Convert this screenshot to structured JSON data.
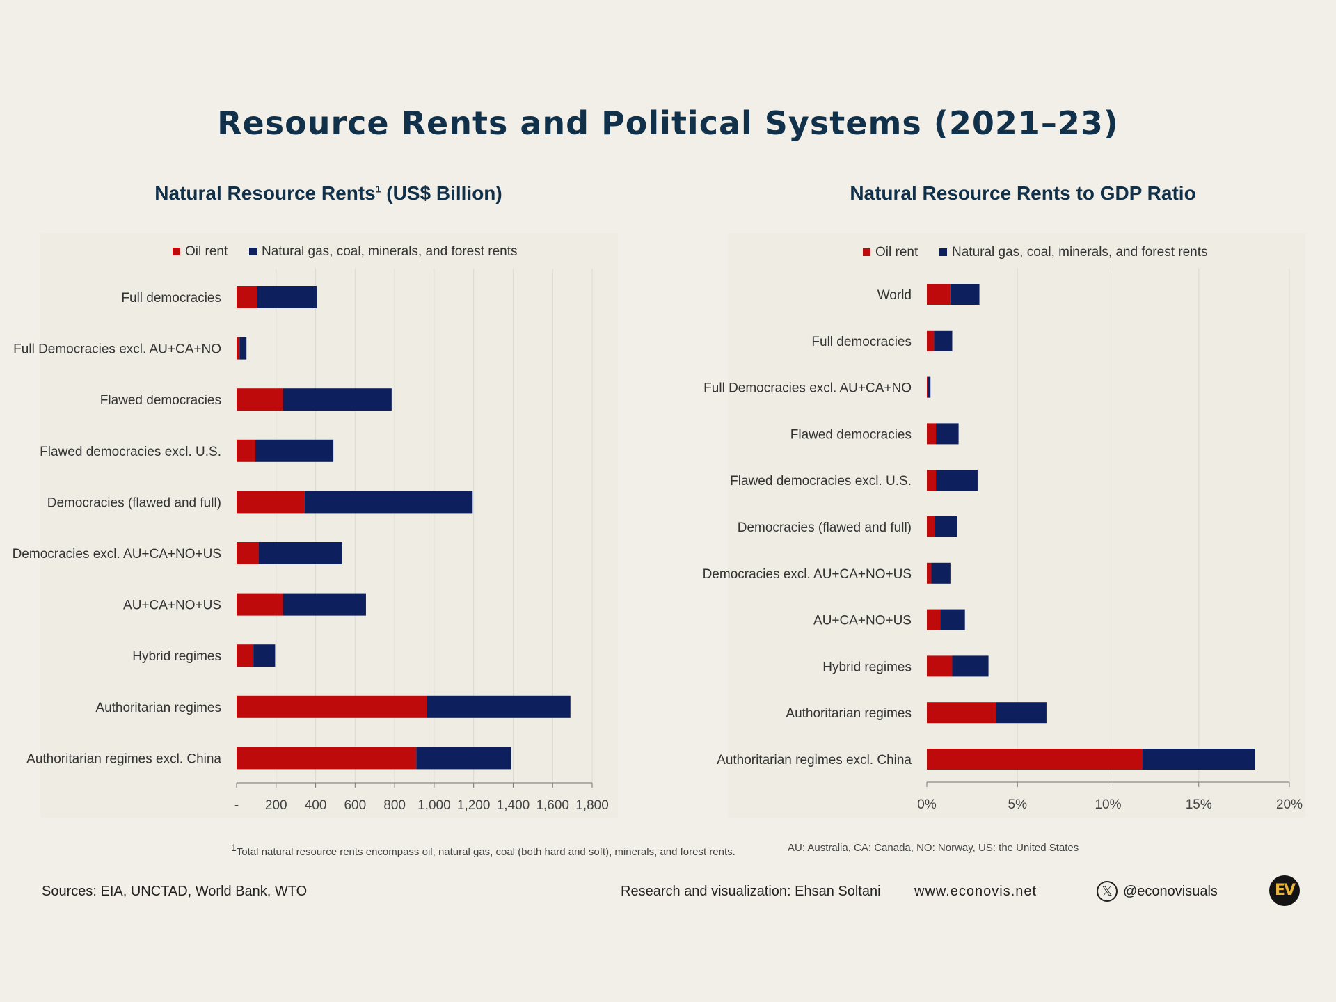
{
  "title": "Resource Rents and Political Systems (2021–23)",
  "colors": {
    "oil": "#be0a0a",
    "other": "#0d1f5c",
    "title": "#11304a",
    "grid": "#dcdad2"
  },
  "chart_data": [
    {
      "type": "bar",
      "orientation": "horizontal",
      "stacked": true,
      "title": "Natural Resource Rents",
      "title_sup": "1",
      "title_suffix": "(US$ Billion)",
      "categories": [
        "Full democracies",
        "Full Democracies excl. AU+CA+NO",
        "Flawed democracies",
        "Flawed democracies excl. U.S.",
        "Democracies (flawed and full)",
        "Democracies excl. AU+CA+NO+US",
        "AU+CA+NO+US",
        "Hybrid regimes",
        "Authoritarian regimes",
        "Authoritarian regimes excl. China"
      ],
      "series": [
        {
          "name": "Oil rent",
          "values": [
            105,
            15,
            235,
            95,
            345,
            110,
            235,
            85,
            965,
            910
          ]
        },
        {
          "name": "Natural gas, coal, minerals, and forest rents",
          "values": [
            300,
            35,
            550,
            395,
            850,
            425,
            420,
            110,
            725,
            480
          ]
        }
      ],
      "xlim": [
        0,
        1800
      ],
      "ticks": [
        0,
        200,
        400,
        600,
        800,
        1000,
        1200,
        1400,
        1600,
        1800
      ],
      "tick_labels": [
        "-",
        "200",
        "400",
        "600",
        "800",
        "1,000",
        "1,200",
        "1,400",
        "1,600",
        "1,800"
      ],
      "legend_position": "top"
    },
    {
      "type": "bar",
      "orientation": "horizontal",
      "stacked": true,
      "title": "Natural Resource Rents to GDP Ratio",
      "categories": [
        "World",
        "Full democracies",
        "Full Democracies excl. AU+CA+NO",
        "Flawed democracies",
        "Flawed democracies excl. U.S.",
        "Democracies (flawed and full)",
        "Democracies excl. AU+CA+NO+US",
        "AU+CA+NO+US",
        "Hybrid regimes",
        "Authoritarian regimes",
        "Authoritarian regimes excl. China"
      ],
      "series": [
        {
          "name": "Oil rent",
          "values": [
            1.3,
            0.4,
            0.05,
            0.5,
            0.5,
            0.45,
            0.25,
            0.75,
            1.4,
            3.8,
            11.9
          ]
        },
        {
          "name": "Natural gas, coal, minerals, and forest rents",
          "values": [
            1.6,
            1.0,
            0.15,
            1.25,
            2.3,
            1.2,
            1.05,
            1.35,
            2.0,
            2.8,
            6.2
          ]
        }
      ],
      "xlim": [
        0,
        20
      ],
      "ticks": [
        0,
        5,
        10,
        15,
        20
      ],
      "tick_labels": [
        "0%",
        "5%",
        "10%",
        "15%",
        "20%"
      ],
      "legend_position": "top"
    }
  ],
  "footnotes": {
    "left_sup": "1",
    "left": "Total natural resource rents encompass oil, natural gas, coal (both hard and soft), minerals, and forest rents.",
    "right": "AU: Australia, CA: Canada, NO: Norway, US: the United States"
  },
  "footer": {
    "sources": "Sources: EIA, UNCTAD, World Bank, WTO",
    "credit": "Research and visualization: Ehsan Soltani",
    "website": "www.econovis.net",
    "x_icon_glyph": "𝕏",
    "handle": "@econovisuals",
    "logo_text": "EV"
  }
}
